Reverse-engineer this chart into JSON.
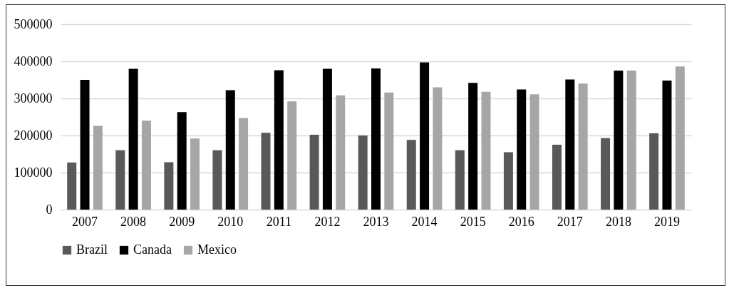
{
  "chart_data": {
    "type": "bar",
    "categories": [
      "2007",
      "2008",
      "2009",
      "2010",
      "2011",
      "2012",
      "2013",
      "2014",
      "2015",
      "2016",
      "2017",
      "2018",
      "2019"
    ],
    "series": [
      {
        "name": "Brazil",
        "color": "#595959",
        "values": [
          127000,
          160000,
          128000,
          160000,
          207000,
          202000,
          200000,
          188000,
          160000,
          155000,
          175000,
          193000,
          206000
        ]
      },
      {
        "name": "Canada",
        "color": "#000000",
        "values": [
          350000,
          380000,
          263000,
          322000,
          376000,
          380000,
          381000,
          397000,
          342000,
          324000,
          351000,
          375000,
          348000
        ]
      },
      {
        "name": "Mexico",
        "color": "#a6a6a6",
        "values": [
          226000,
          240000,
          192000,
          247000,
          292000,
          308000,
          316000,
          330000,
          318000,
          311000,
          340000,
          375000,
          386000
        ]
      }
    ],
    "ylim": [
      0,
      500000
    ],
    "yticks": [
      0,
      100000,
      200000,
      300000,
      400000,
      500000
    ],
    "grid": "y",
    "legend": "bottom"
  }
}
